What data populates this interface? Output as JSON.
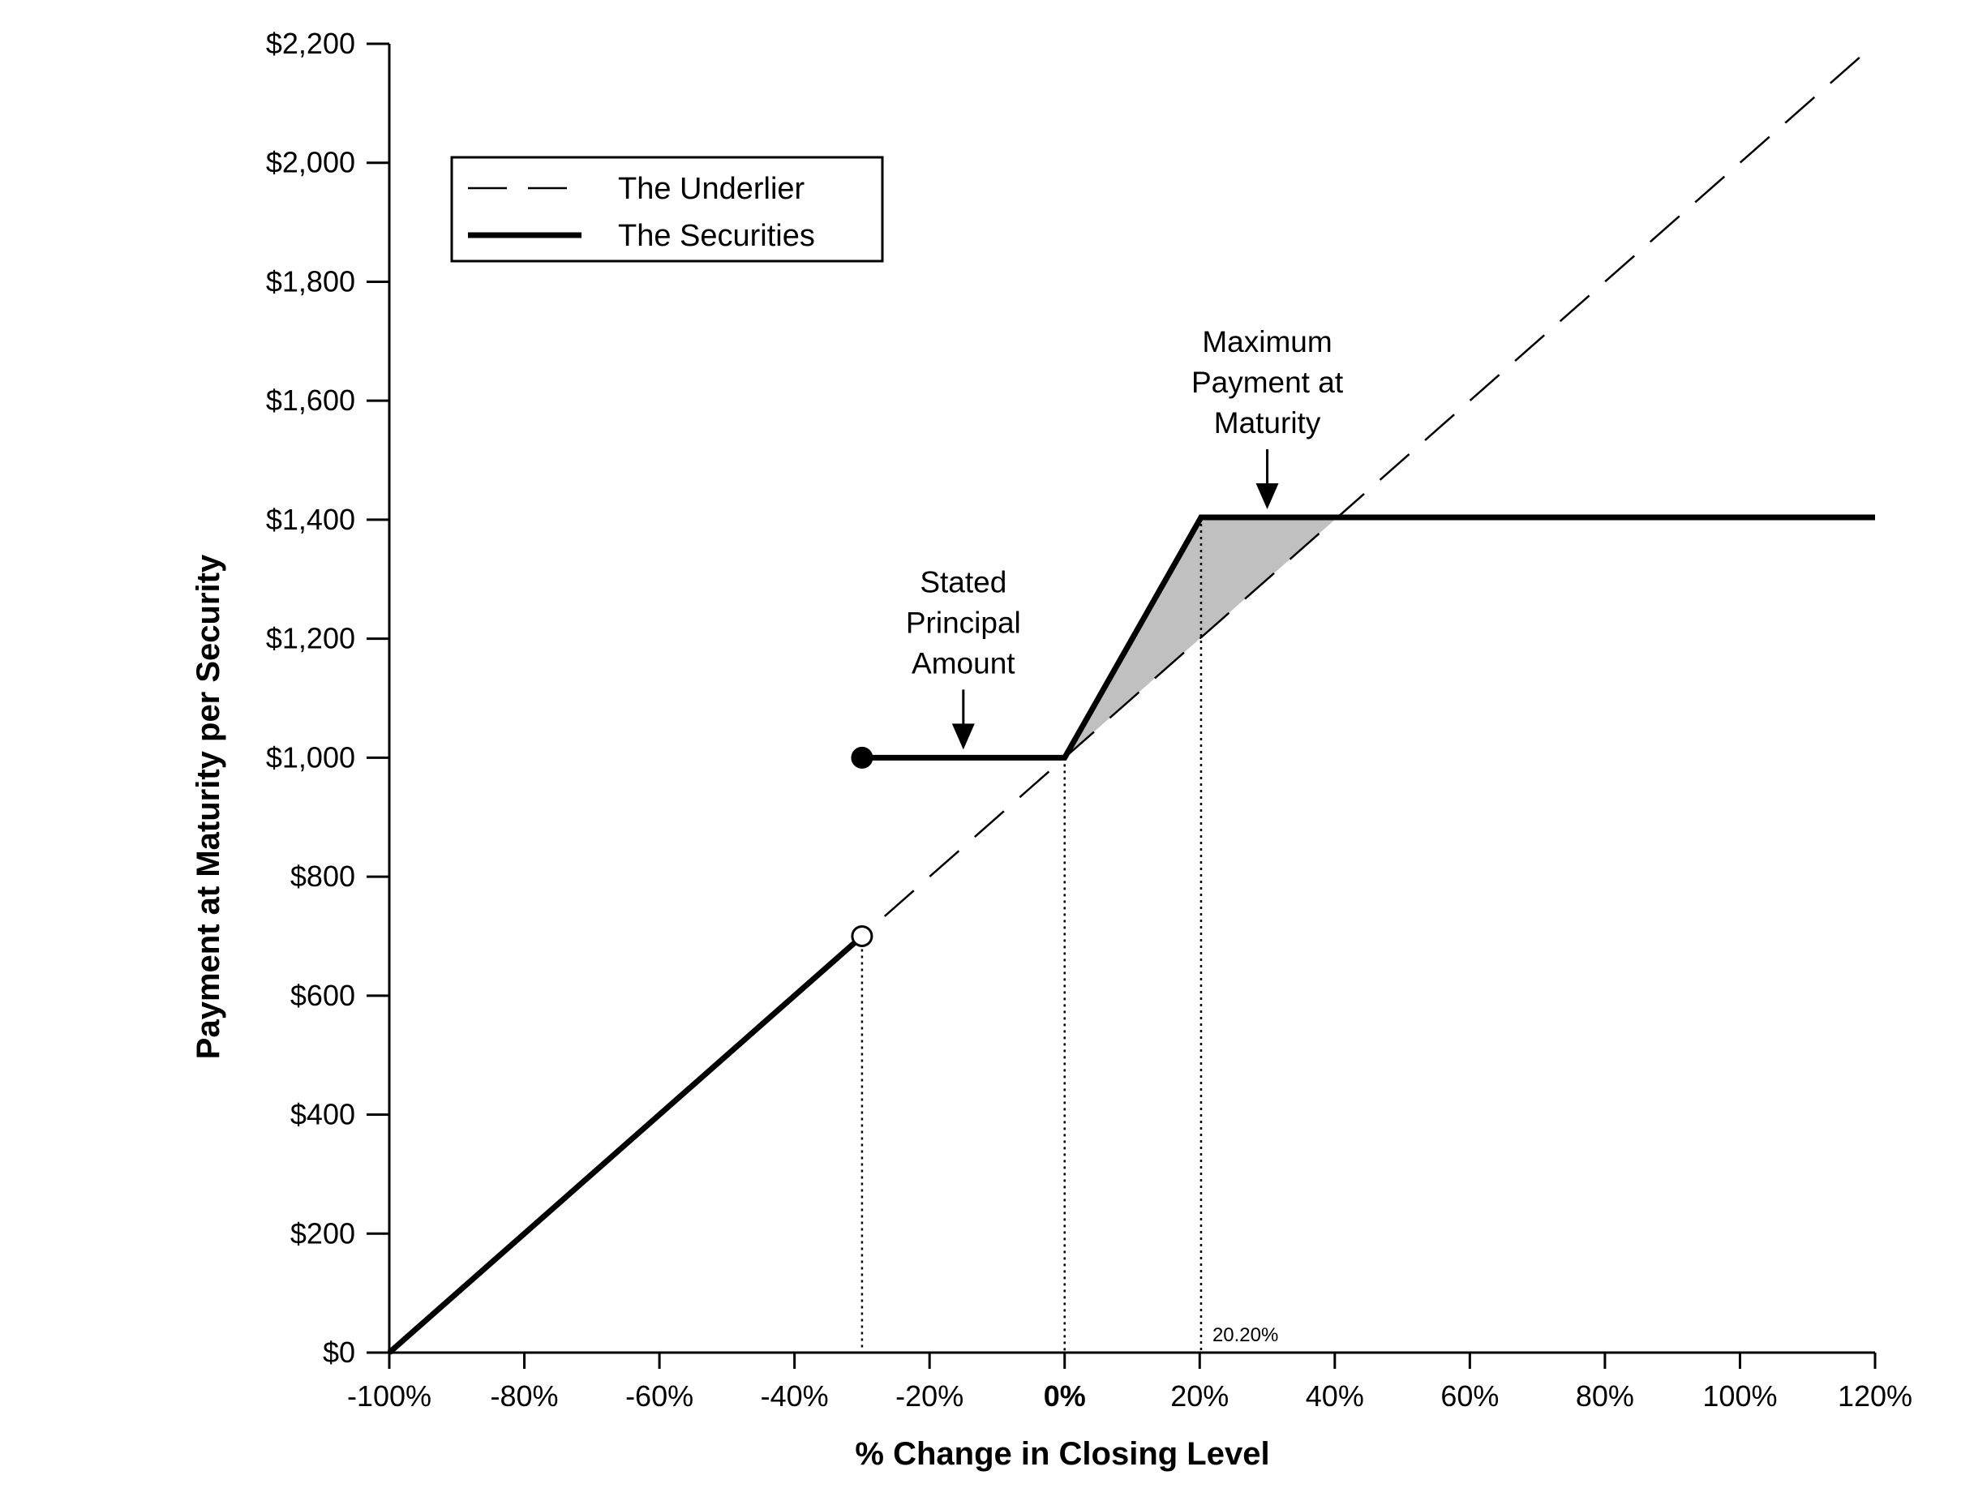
{
  "chart_data": {
    "type": "line",
    "xlabel": "% Change in Closing Level",
    "ylabel": "Payment at Maturity per Security",
    "xlim": [
      -100,
      120
    ],
    "ylim": [
      0,
      2200
    ],
    "x_ticks": [
      -100,
      -80,
      -60,
      -40,
      -20,
      0,
      20,
      40,
      60,
      80,
      100,
      120
    ],
    "x_tick_labels": [
      "-100%",
      "-80%",
      "-60%",
      "-40%",
      "-20%",
      "0%",
      "20%",
      "40%",
      "60%",
      "80%",
      "100%",
      "120%"
    ],
    "y_ticks": [
      0,
      200,
      400,
      600,
      800,
      1000,
      1200,
      1400,
      1600,
      1800,
      2000,
      2200
    ],
    "y_tick_labels": [
      "$0",
      "$200",
      "$400",
      "$600",
      "$800",
      "$1,000",
      "$1,200",
      "$1,400",
      "$1,600",
      "$1,800",
      "$2,000",
      "$2,200"
    ],
    "grid": false,
    "legend_position": "top-left",
    "series": [
      {
        "name": "The Underlier",
        "style": "dashed",
        "x": [
          -100,
          120
        ],
        "y": [
          0,
          2200
        ]
      },
      {
        "name": "The Securities",
        "style": "solid-thick",
        "segments": [
          {
            "x": [
              -100,
              -30
            ],
            "y": [
              0,
              700
            ]
          },
          {
            "x": [
              -30,
              0,
              20.2,
              120
            ],
            "y": [
              1000,
              1000,
              1404,
              1404
            ]
          }
        ]
      }
    ],
    "markers": [
      {
        "kind": "filled",
        "x": -30,
        "y": 1000
      },
      {
        "kind": "open",
        "x": -30,
        "y": 700
      }
    ],
    "reference_lines": [
      {
        "x": -30,
        "y": 700
      },
      {
        "x": 0,
        "y": 1000
      },
      {
        "x": 20.2,
        "y": 1404
      }
    ],
    "shaded_region": {
      "x": [
        0,
        20.2,
        40.4
      ],
      "y": [
        1000,
        1404,
        1404
      ],
      "fill": "#c0c0c0"
    },
    "annotations": [
      {
        "lines": [
          "Stated",
          "Principal",
          "Amount"
        ],
        "arrow_to": {
          "x": -15,
          "y": 1000
        }
      },
      {
        "lines": [
          "Maximum",
          "Payment at",
          "Maturity"
        ],
        "arrow_to": {
          "x": 30,
          "y": 1404
        }
      },
      {
        "lines": [
          "20.20%"
        ],
        "at": {
          "x": 20.2,
          "y": 0
        }
      }
    ]
  }
}
